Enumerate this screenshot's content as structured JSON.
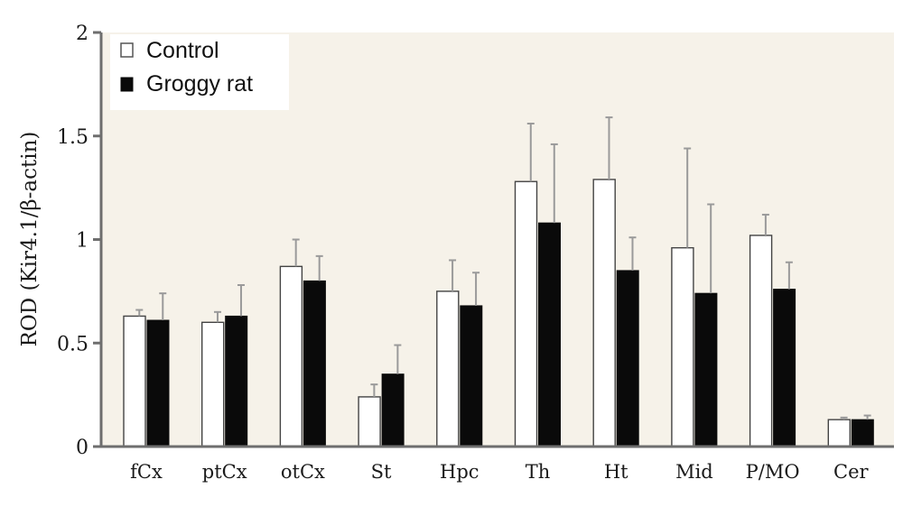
{
  "chart_data": {
    "type": "bar",
    "ylabel": "ROD (Kir4.1/β-actin)",
    "ylim": [
      0,
      2
    ],
    "yticks": [
      {
        "value": 0,
        "label": "0"
      },
      {
        "value": 0.5,
        "label": "0.5"
      },
      {
        "value": 1,
        "label": "1"
      },
      {
        "value": 1.5,
        "label": "1.5"
      },
      {
        "value": 2,
        "label": "2"
      }
    ],
    "categories": [
      "fCx",
      "ptCx",
      "otCx",
      "St",
      "Hpc",
      "Th",
      "Ht",
      "Mid",
      "P/MO",
      "Cer"
    ],
    "series": [
      {
        "name": "Control",
        "fill": "#ffffff",
        "values": [
          0.63,
          0.6,
          0.87,
          0.24,
          0.75,
          1.28,
          1.29,
          0.96,
          1.02,
          0.13
        ],
        "errors": [
          0.03,
          0.05,
          0.13,
          0.06,
          0.15,
          0.28,
          0.3,
          0.48,
          0.1,
          0.01
        ]
      },
      {
        "name": "Groggy rat",
        "fill": "#0a0a0a",
        "values": [
          0.61,
          0.63,
          0.8,
          0.35,
          0.68,
          1.08,
          0.85,
          0.74,
          0.76,
          0.13
        ],
        "errors": [
          0.13,
          0.15,
          0.12,
          0.14,
          0.16,
          0.38,
          0.16,
          0.43,
          0.13,
          0.02
        ]
      }
    ],
    "legend": {
      "position": "top-left"
    },
    "colors": {
      "axis": "#6e6e6e",
      "plot_background": "#f6f2e9",
      "error_bar": "#9a9a9a",
      "bar_outline": "#444444"
    }
  }
}
